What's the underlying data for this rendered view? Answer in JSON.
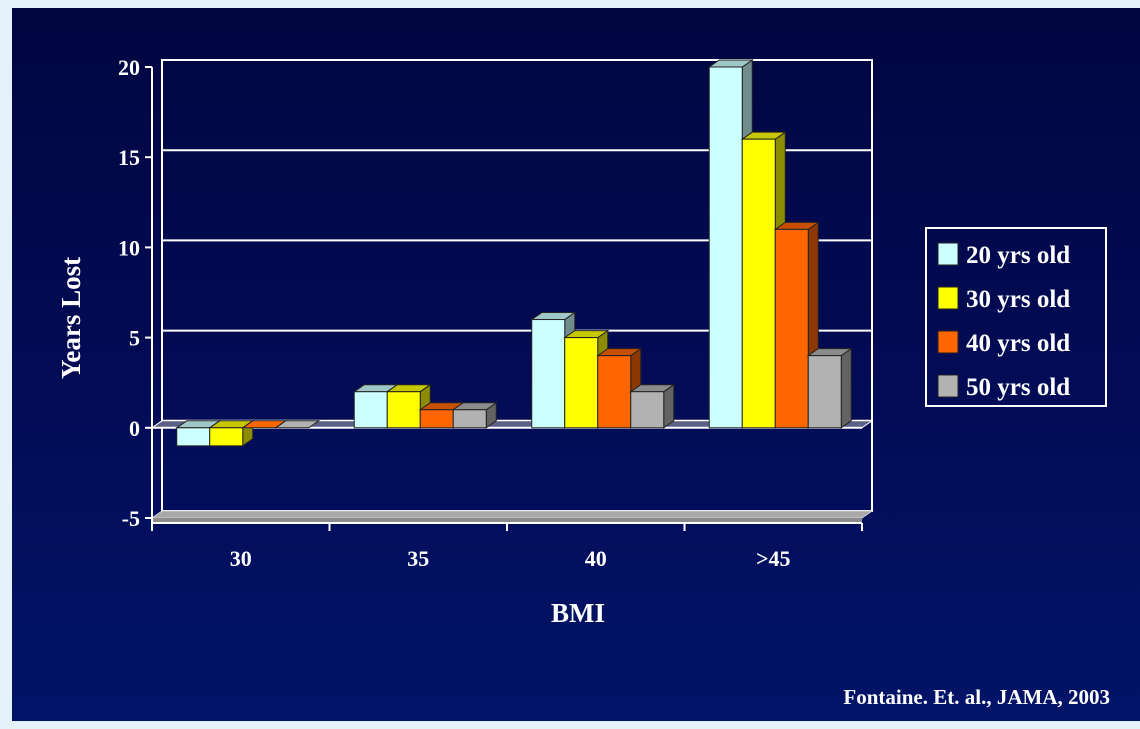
{
  "slide": {
    "background_color": "#020a52",
    "source_note": "Fontaine. Et. al., JAMA, 2003"
  },
  "chart_data": {
    "type": "bar",
    "title": "",
    "xlabel": "BMI",
    "ylabel": "Years Lost",
    "categories": [
      "30",
      "35",
      "40",
      ">45"
    ],
    "ylim": [
      -5,
      20
    ],
    "yticks": [
      "20",
      "15",
      "10",
      "5",
      "0",
      "-5"
    ],
    "grid": true,
    "legend_position": "right",
    "series": [
      {
        "name": "20 yrs old",
        "color": "#ccffff",
        "values": [
          -1,
          2,
          6,
          20
        ]
      },
      {
        "name": "30 yrs old",
        "color": "#ffff00",
        "values": [
          -1,
          2,
          5,
          16
        ]
      },
      {
        "name": "40 yrs old",
        "color": "#ff6600",
        "values": [
          0,
          1,
          4,
          11
        ]
      },
      {
        "name": "50 yrs old",
        "color": "#b2b2b2",
        "values": [
          0,
          1,
          2,
          4
        ]
      }
    ]
  }
}
